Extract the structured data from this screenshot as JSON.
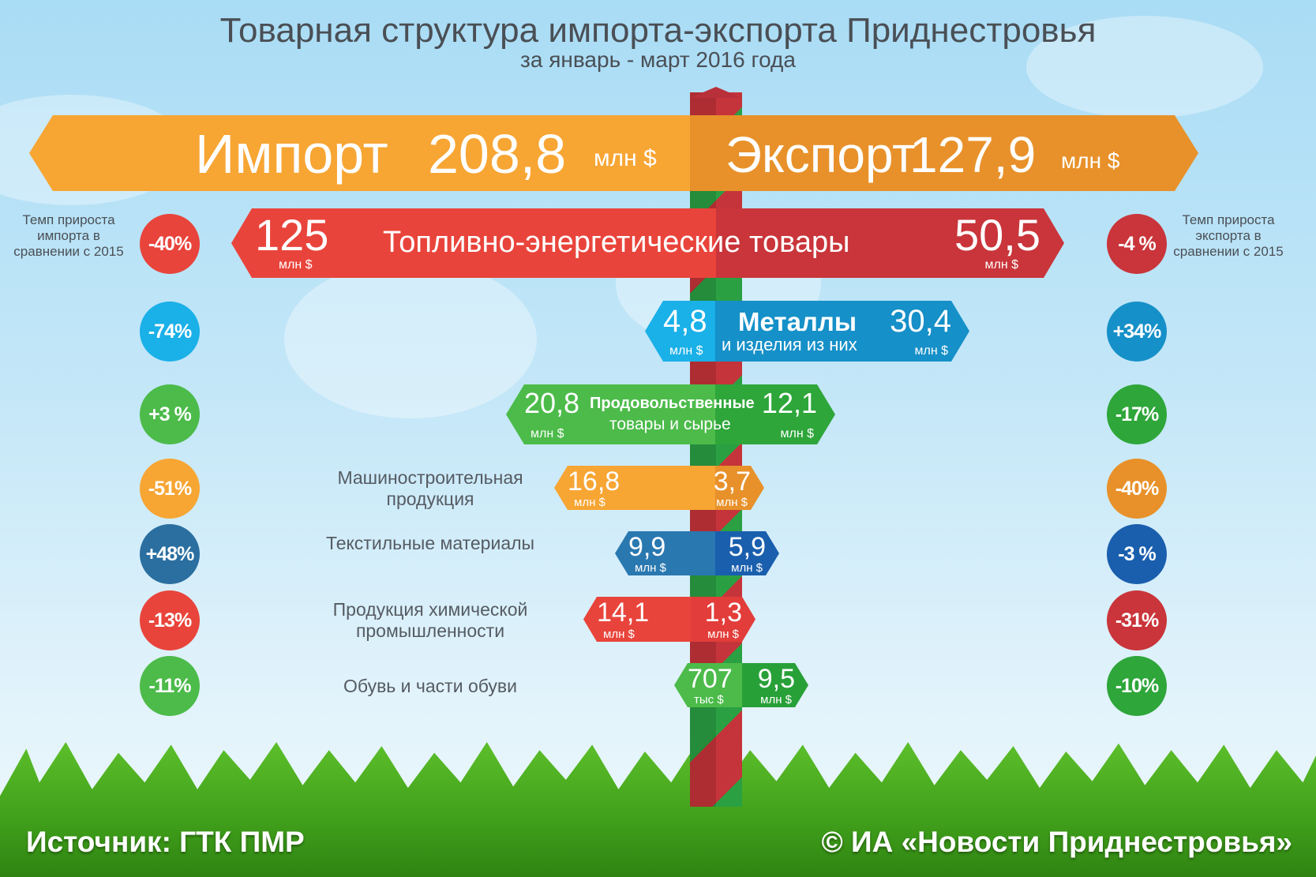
{
  "title": "Товарная структура импорта-экспорта Приднестровья",
  "subtitle": "за январь - март 2016 года",
  "import": {
    "label": "Импорт",
    "value": "208,8",
    "unit": "млн $"
  },
  "export": {
    "label": "Экспорт",
    "value": "127,9",
    "unit": "млн $"
  },
  "notes": {
    "left": "Темп прироста импорта в сравнении с 2015",
    "right": "Темп прироста экспорта в сравнении с 2015"
  },
  "rows": [
    {
      "name": "Топливно-энергетические товары",
      "imp": "125",
      "imp_unit": "млн $",
      "exp": "50,5",
      "exp_unit": "млн $",
      "imp_change": "-40%",
      "exp_change": "-4 %"
    },
    {
      "name": "Металлы",
      "name2": "и изделия из них",
      "imp": "4,8",
      "imp_unit": "млн $",
      "exp": "30,4",
      "exp_unit": "млн $",
      "imp_change": "-74%",
      "exp_change": "+34%"
    },
    {
      "name": "Продовольственные",
      "name2": "товары и сырье",
      "imp": "20,8",
      "imp_unit": "млн $",
      "exp": "12,1",
      "exp_unit": "млн $",
      "imp_change": "+3 %",
      "exp_change": "-17%"
    },
    {
      "name": "Машиностроительная продукция",
      "imp": "16,8",
      "imp_unit": "млн $",
      "exp": "3,7",
      "exp_unit": "млн $",
      "imp_change": "-51%",
      "exp_change": "-40%"
    },
    {
      "name": "Текстильные материалы",
      "imp": "9,9",
      "imp_unit": "млн $",
      "exp": "5,9",
      "exp_unit": "млн $",
      "imp_change": "+48%",
      "exp_change": "-3 %"
    },
    {
      "name": "Продукция химической промышленности",
      "imp": "14,1",
      "imp_unit": "млн $",
      "exp": "1,3",
      "exp_unit": "млн $",
      "imp_change": "-13%",
      "exp_change": "-31%"
    },
    {
      "name": "Обувь и части обуви",
      "imp": "707",
      "imp_unit": "тыс $",
      "exp": "9,5",
      "exp_unit": "млн $",
      "imp_change": "-11%",
      "exp_change": "-10%"
    }
  ],
  "footer": {
    "source": "Источник: ГТК ПМР",
    "copyright": "© ИА «Новости  Приднестровья»"
  },
  "colors": {
    "orange": "#f7a533",
    "orange_dark": "#e8912a",
    "red": "#e9443b",
    "red_dark": "#c9353a",
    "blue": "#1ab0e8",
    "blue_dark": "#1690c8",
    "green": "#4cbb4a",
    "green_dark": "#2ea63a",
    "navy": "#2a78b0",
    "navy_dark": "#1a5fae"
  }
}
